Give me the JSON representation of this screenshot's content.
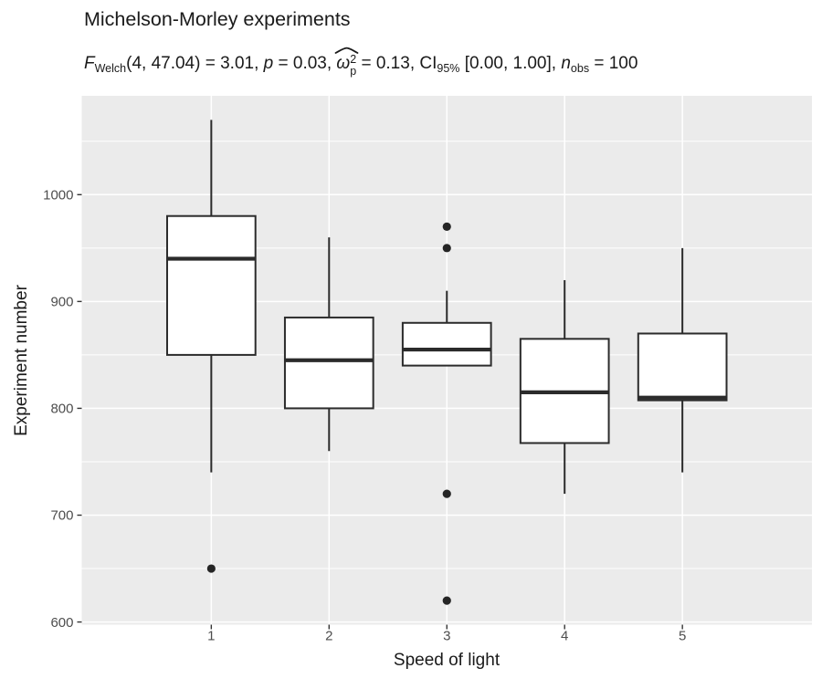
{
  "title": "Michelson-Morley experiments",
  "subtitle": {
    "f_sym": "F",
    "f_sub": "Welch",
    "f_tail": "(4, 47.04) = 3.01, ",
    "p_sym": "p",
    "p_tail": " = 0.03, ",
    "omega_sym": "ω",
    "omega_sup": "2",
    "omega_sub": "p",
    "omega_tail": " = 0.13, ",
    "ci_sym": "CI",
    "ci_sub": "95%",
    "ci_tail": " [0.00, 1.00], ",
    "n_sym": "n",
    "n_sub": "obs",
    "n_tail": " = 100"
  },
  "chart_data": {
    "type": "boxplot",
    "title": "Michelson-Morley experiments",
    "xlabel": "Speed of light",
    "ylabel": "Experiment number",
    "categories": [
      "1",
      "2",
      "3",
      "4",
      "5"
    ],
    "x_tick_labels": [
      "1",
      "2",
      "3",
      "4",
      "5"
    ],
    "y_major_ticks": [
      600,
      700,
      800,
      900,
      1000
    ],
    "y_minor_ticks": [
      650,
      750,
      850,
      950,
      1050
    ],
    "ylim": [
      597.5,
      1092.5
    ],
    "box_width_units": 0.75,
    "category_expand": 0.6,
    "grid": "white major+minor horizontal lines, white major vertical lines on gray panel",
    "legend": "none",
    "boxes": [
      {
        "category": "1",
        "lower_whisker": 740,
        "q1": 850,
        "median": 940,
        "q3": 980,
        "upper_whisker": 1070,
        "outliers": [
          650
        ]
      },
      {
        "category": "2",
        "lower_whisker": 760,
        "q1": 800,
        "median": 845,
        "q3": 885,
        "upper_whisker": 960,
        "outliers": []
      },
      {
        "category": "3",
        "lower_whisker": 840,
        "q1": 840,
        "median": 855,
        "q3": 880,
        "upper_whisker": 910,
        "outliers": [
          970,
          950,
          720,
          620
        ]
      },
      {
        "category": "4",
        "lower_whisker": 720,
        "q1": 767.5,
        "median": 815,
        "q3": 865,
        "upper_whisker": 920,
        "outliers": []
      },
      {
        "category": "5",
        "lower_whisker": 740,
        "q1": 807.5,
        "median": 810,
        "q3": 870,
        "upper_whisker": 950,
        "outliers": []
      }
    ],
    "colors": {
      "panel_bg": "#EBEBEB",
      "gridline": "#FFFFFF",
      "box_fill": "#FFFFFF",
      "box_stroke": "#2B2B2B",
      "outlier": "#252525",
      "tick_mark": "#333333",
      "tick_label": "#4D4D4D",
      "text": "#1A1A1A"
    }
  }
}
